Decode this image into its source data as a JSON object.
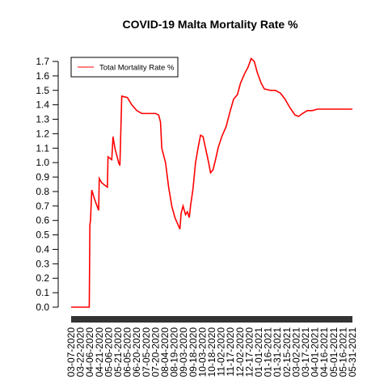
{
  "chart_data": {
    "type": "line",
    "title": "COVID-19 Malta Mortality Rate %",
    "series": [
      {
        "name": "Total Mortality Rate %",
        "color": "#ff0000",
        "x": [
          "03-07-2020",
          "04-05-2020",
          "04-06-2020",
          "04-07-2020",
          "04-09-2020",
          "04-14-2020",
          "04-20-2020",
          "04-21-2020",
          "04-25-2020",
          "05-04-2020",
          "05-05-2020",
          "05-11-2020",
          "05-13-2020",
          "05-16-2020",
          "05-22-2020",
          "05-24-2020",
          "05-25-2020",
          "05-27-2020",
          "06-05-2020",
          "06-12-2020",
          "06-20-2020",
          "06-28-2020",
          "07-20-2020",
          "07-25-2020",
          "07-28-2020",
          "07-30-2020",
          "08-05-2020",
          "08-10-2020",
          "08-15-2020",
          "08-20-2020",
          "08-25-2020",
          "08-28-2020",
          "08-30-2020",
          "09-02-2020",
          "09-06-2020",
          "09-09-2020",
          "09-12-2020",
          "09-14-2020",
          "09-18-2020",
          "09-22-2020",
          "09-26-2020",
          "09-30-2020",
          "10-04-2020",
          "10-08-2020",
          "10-13-2020",
          "10-16-2020",
          "10-20-2020",
          "10-24-2020",
          "10-28-2020",
          "11-03-2020",
          "11-10-2020",
          "11-16-2020",
          "11-22-2020",
          "11-28-2020",
          "12-03-2020",
          "12-10-2020",
          "12-15-2020",
          "12-20-2020",
          "12-25-2020",
          "12-30-2020",
          "01-05-2021",
          "01-10-2021",
          "01-20-2021",
          "01-28-2021",
          "02-05-2021",
          "02-12-2021",
          "02-20-2021",
          "02-28-2021",
          "03-06-2021",
          "03-12-2021",
          "03-20-2021",
          "03-28-2021",
          "04-05-2021",
          "05-31-2021"
        ],
        "values": [
          0.0,
          0.0,
          0.57,
          0.6,
          0.81,
          0.74,
          0.67,
          0.89,
          0.86,
          0.83,
          1.04,
          1.02,
          1.18,
          1.1,
          1.0,
          0.98,
          1.14,
          1.46,
          1.45,
          1.4,
          1.36,
          1.34,
          1.34,
          1.33,
          1.28,
          1.1,
          1.0,
          0.83,
          0.7,
          0.62,
          0.57,
          0.54,
          0.65,
          0.7,
          0.64,
          0.66,
          0.62,
          0.7,
          0.82,
          1.0,
          1.1,
          1.19,
          1.18,
          1.1,
          1.0,
          0.93,
          0.95,
          1.02,
          1.1,
          1.18,
          1.25,
          1.35,
          1.44,
          1.47,
          1.55,
          1.62,
          1.66,
          1.72,
          1.7,
          1.62,
          1.55,
          1.51,
          1.5,
          1.5,
          1.48,
          1.44,
          1.38,
          1.33,
          1.32,
          1.34,
          1.36,
          1.36,
          1.37,
          1.37
        ]
      }
    ],
    "xlim": [
      "03-07-2020",
      "05-31-2021"
    ],
    "xticks": [
      "03-07-2020",
      "03-22-2020",
      "04-06-2020",
      "04-21-2020",
      "05-06-2020",
      "05-21-2020",
      "06-05-2020",
      "06-20-2020",
      "07-05-2020",
      "07-20-2020",
      "08-04-2020",
      "08-19-2020",
      "09-03-2020",
      "09-18-2020",
      "10-03-2020",
      "10-18-2020",
      "11-02-2020",
      "11-17-2020",
      "12-02-2020",
      "12-17-2020",
      "01-01-2021",
      "01-16-2021",
      "01-31-2021",
      "02-15-2021",
      "03-02-2021",
      "03-17-2021",
      "04-01-2021",
      "04-16-2021",
      "05-01-2021",
      "05-16-2021",
      "05-31-2021"
    ],
    "ylim": [
      0,
      1.7
    ],
    "yticks": [
      {
        "value": 0,
        "label": "0.0"
      },
      0.1,
      0.2,
      0.3,
      0.4,
      0.5,
      0.6,
      0.7,
      0.8,
      0.9,
      {
        "value": 1,
        "label": "1.0"
      },
      1.1,
      1.2,
      1.3,
      1.4,
      1.5,
      1.6,
      1.7
    ],
    "legend": "top-left"
  }
}
